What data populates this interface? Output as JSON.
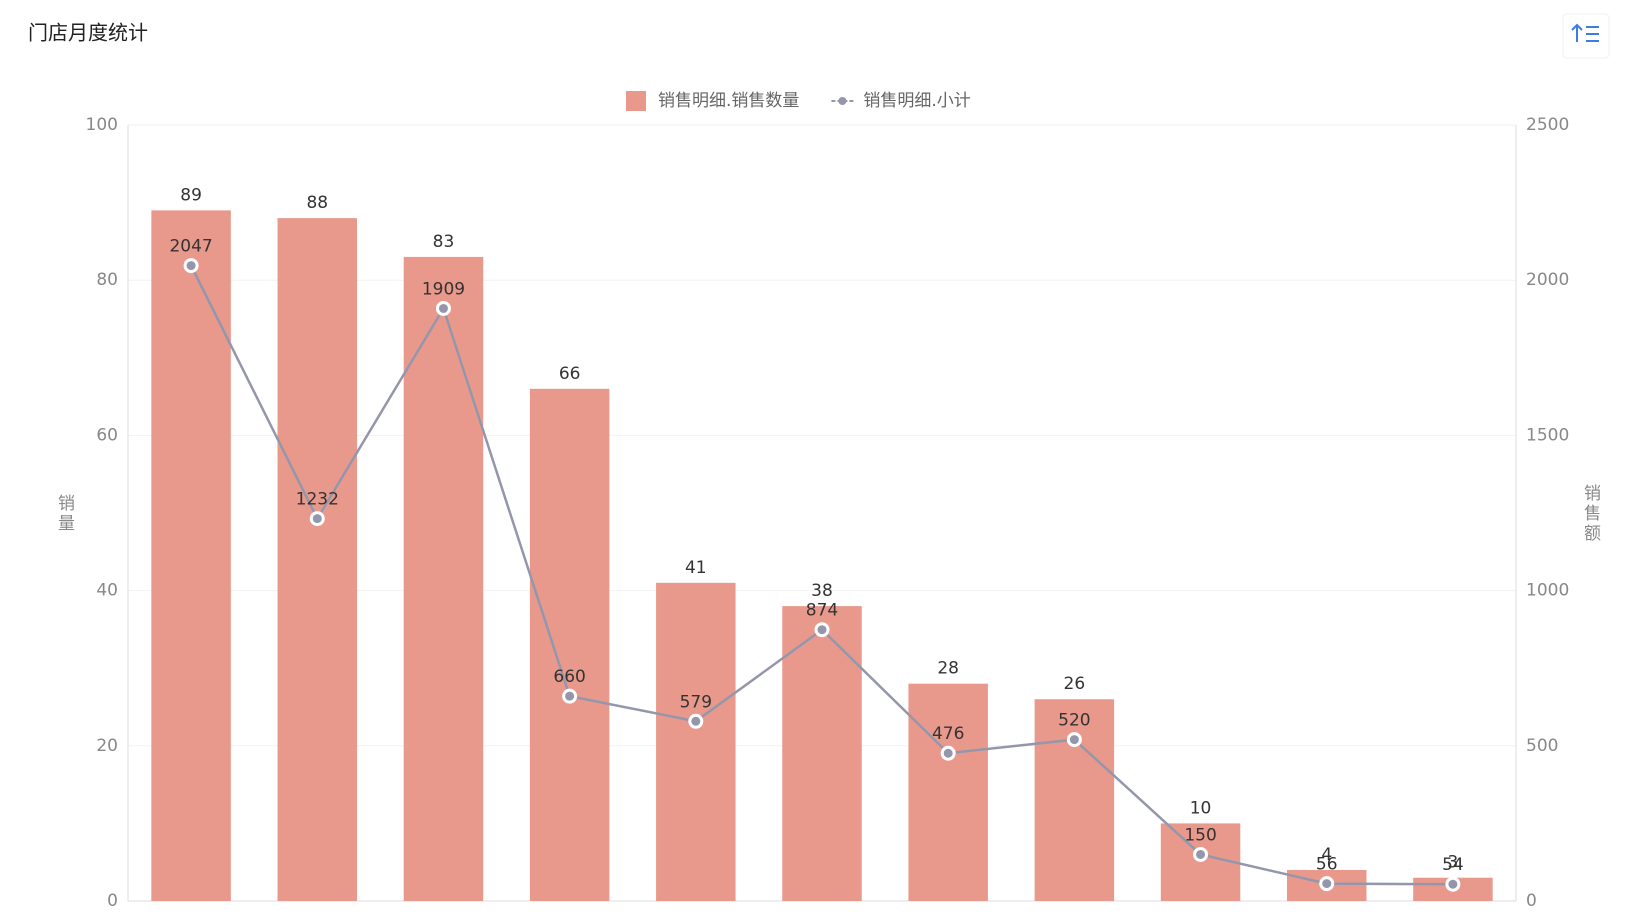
{
  "chart_data": {
    "type": "bar",
    "title": "门店月度统计",
    "categories": [
      null,
      null,
      null,
      null,
      null,
      null,
      null,
      null,
      null,
      null,
      null
    ],
    "series": [
      {
        "name": "销售明细.销售数量",
        "type": "bar",
        "color": "#e8998b",
        "values": [
          89,
          88,
          83,
          66,
          41,
          38,
          28,
          26,
          10,
          4,
          3
        ]
      },
      {
        "name": "销售明细.小计",
        "type": "line",
        "axis": "y2",
        "color": "#9497ab",
        "values": [
          2047,
          1232,
          1909,
          660,
          579,
          874,
          476,
          520,
          150,
          56,
          54
        ]
      }
    ],
    "ylabel": "销量",
    "y2label": "销售额",
    "ylim": [
      0,
      100
    ],
    "yticks": [
      0,
      20,
      40,
      60,
      80,
      100
    ],
    "y2lim": [
      0,
      2500
    ],
    "y2ticks": [
      0,
      500,
      1000,
      1500,
      2000,
      2500
    ],
    "grid": true,
    "legend": "top"
  }
}
